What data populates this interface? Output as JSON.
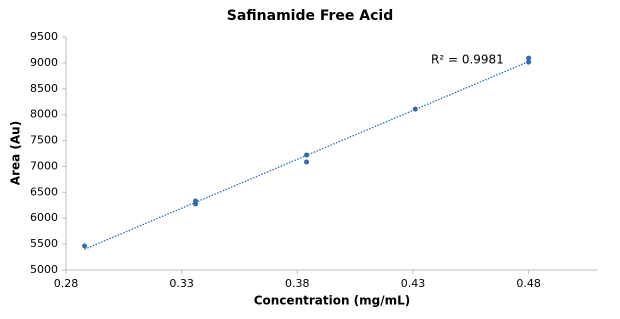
{
  "chart_data": {
    "type": "scatter",
    "title": "Safinamide Free Acid",
    "x_label": "Concentration (mg/mL)",
    "y_label": "Area (Au)",
    "annotation": "R² = 0.9981",
    "series": [
      {
        "color": "#2e6bb0",
        "x": [
          0.288,
          0.336,
          0.336,
          0.384,
          0.384,
          0.431,
          0.48,
          0.48
        ],
        "values": [
          5463,
          6332,
          6274,
          7220,
          7085,
          8108,
          9093,
          9015
        ]
      }
    ],
    "trendline": true,
    "xlim": [
      0.28,
      0.51
    ],
    "xticks": [
      0.28,
      0.33,
      0.38,
      0.43,
      0.48
    ],
    "ylim": [
      5000,
      9500
    ],
    "yticks": [
      5000,
      5500,
      6000,
      6500,
      7000,
      7500,
      8000,
      8500,
      9000,
      9500
    ],
    "grid": false
  }
}
